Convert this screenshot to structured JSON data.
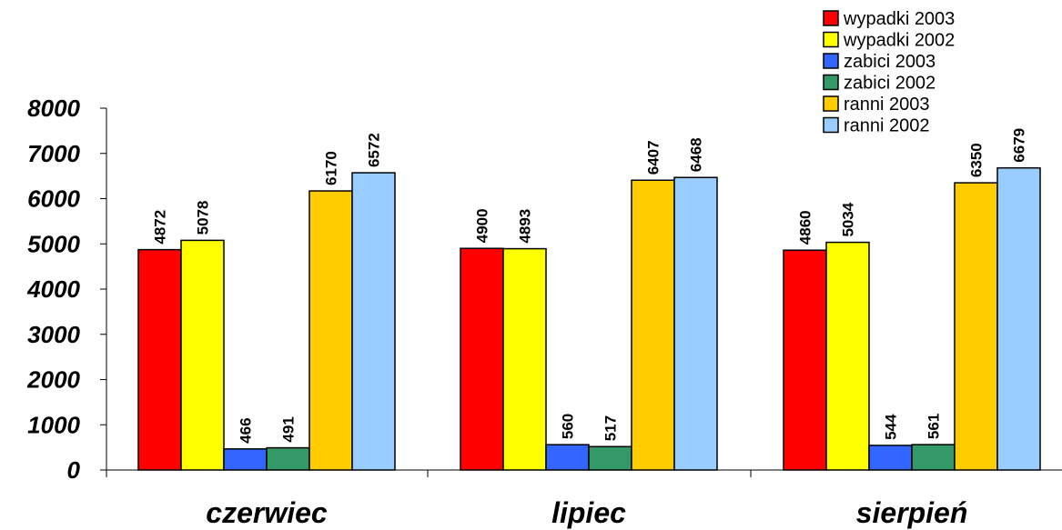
{
  "chart_data": {
    "type": "bar",
    "title": "",
    "xlabel": "",
    "ylabel": "",
    "categories": [
      "czerwiec",
      "lipiec",
      "sierpień"
    ],
    "ylim": [
      0,
      8000
    ],
    "yticks": [
      "0",
      "1000",
      "2000",
      "3000",
      "4000",
      "5000",
      "6000",
      "7000",
      "8000"
    ],
    "grid": false,
    "legend_position": "top-right",
    "series": [
      {
        "name": "wypadki 2003",
        "color": "#ff0000",
        "values": [
          4872,
          4900,
          4860
        ]
      },
      {
        "name": "wypadki 2002",
        "color": "#ffff00",
        "values": [
          5078,
          4893,
          5034
        ]
      },
      {
        "name": "zabici 2003",
        "color": "#3366ff",
        "values": [
          466,
          560,
          544
        ]
      },
      {
        "name": "zabici 2002",
        "color": "#339966",
        "values": [
          491,
          517,
          561
        ]
      },
      {
        "name": "ranni 2003",
        "color": "#ffcc00",
        "values": [
          6170,
          6407,
          6350
        ]
      },
      {
        "name": "ranni 2002",
        "color": "#99ccff",
        "values": [
          6572,
          6468,
          6679
        ]
      }
    ]
  }
}
